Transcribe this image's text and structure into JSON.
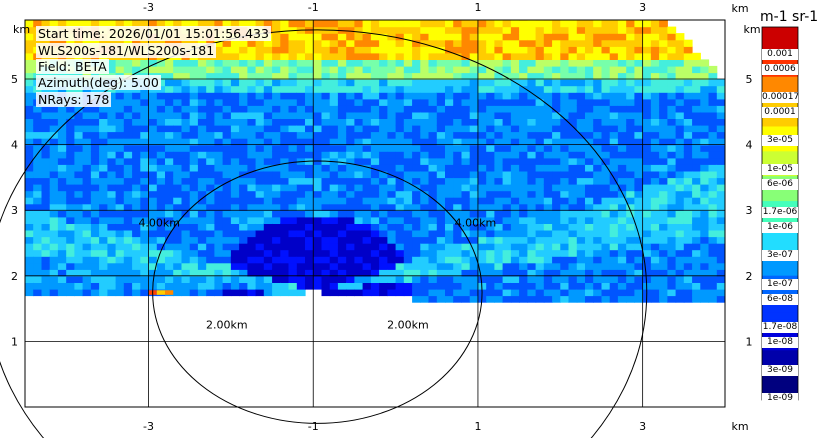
{
  "chart_data": {
    "type": "heatmap",
    "info": {
      "start_time": "Start time: 2026/01/01 15:01:56.433",
      "instrument": "WLS200s-181/WLS200s-181",
      "field": "Field: BETA",
      "azimuth": "Azimuth(deg): 5.00",
      "nrays": "NRays: 178"
    },
    "x_unit": "km",
    "y_unit": "km",
    "x_ticks": [
      "-3",
      "-1",
      "1",
      "3"
    ],
    "y_ticks": [
      "1",
      "2",
      "3",
      "4",
      "5"
    ],
    "xlim": [
      -4.5,
      4
    ],
    "ylim": [
      0,
      5.9
    ],
    "range_rings": [
      {
        "label": "2.00km",
        "radius_km": 2
      },
      {
        "label": "4.00km",
        "radius_km": 4
      }
    ],
    "colorbar": {
      "unit_label": "m-1 sr-1",
      "ticks": [
        "0.001",
        "0.0006",
        "0.00017",
        "0.0001",
        "3e-05",
        "1e-05",
        "6e-06",
        "1.7e-06",
        "1e-06",
        "3e-07",
        "1e-07",
        "6e-08",
        "1.7e-08",
        "1e-08",
        "3e-09",
        "1e-09"
      ]
    }
  }
}
